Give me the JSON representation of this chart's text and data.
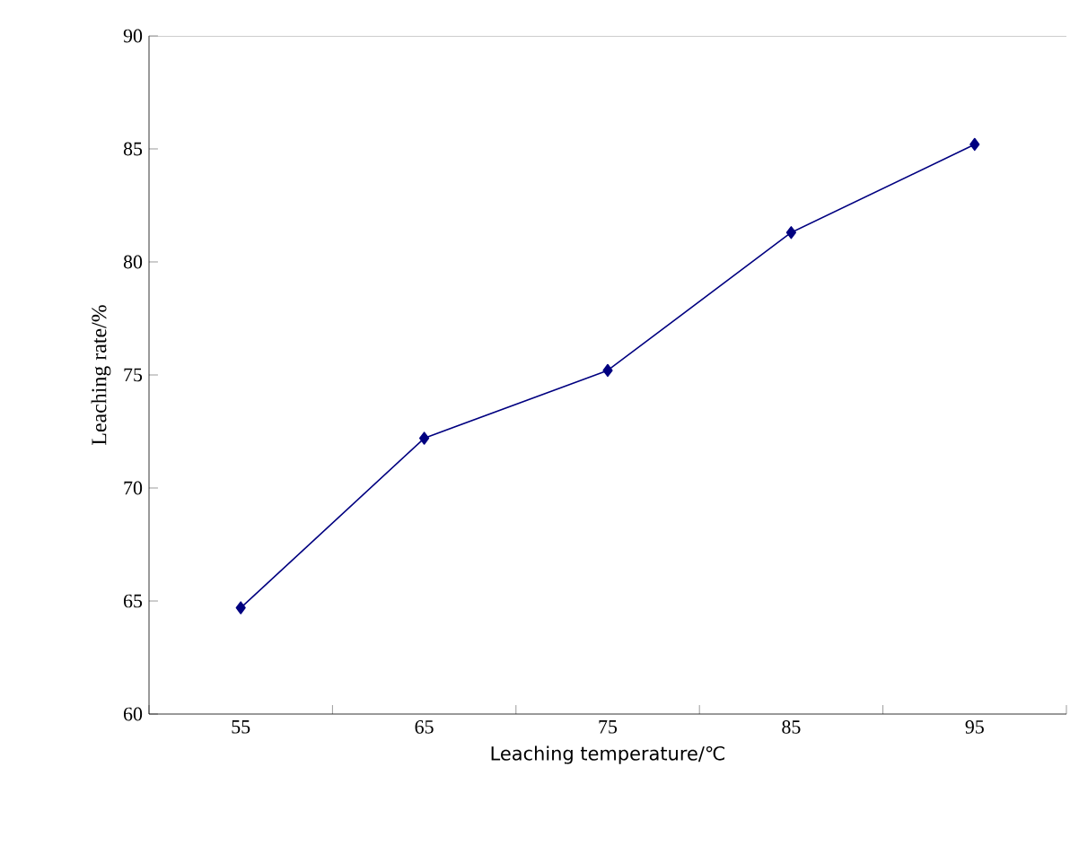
{
  "chart_data": {
    "type": "line",
    "xlabel": "Leaching temperature/℃",
    "ylabel": "Leaching rate/%",
    "categories": [
      "55",
      "65",
      "75",
      "85",
      "95"
    ],
    "series": [
      {
        "color": "#000080",
        "values": [
          64.7,
          72.2,
          75.2,
          81.3,
          85.2
        ]
      }
    ],
    "ylim": [
      60,
      90
    ],
    "yticks": [
      60,
      65,
      70,
      75,
      80,
      85,
      90
    ],
    "marker": "diamond",
    "line_style": "solid",
    "grid": false
  }
}
